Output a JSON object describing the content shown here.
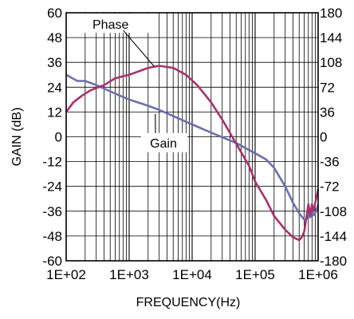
{
  "chart_data": {
    "type": "line",
    "title": "",
    "xlabel": "FREQUENCY(Hz)",
    "ylabel": "GAIN (dB)",
    "x_scale": "log",
    "xlim": [
      100,
      1000000
    ],
    "ylim": [
      -60,
      60
    ],
    "y2lim": [
      -180,
      180
    ],
    "x_ticks": [
      {
        "value": 100,
        "label": "1E+02"
      },
      {
        "value": 1000,
        "label": "1E+03"
      },
      {
        "value": 10000,
        "label": "1E+04"
      },
      {
        "value": 100000,
        "label": "1E+05"
      },
      {
        "value": 1000000,
        "label": "1E+06"
      }
    ],
    "y_ticks": [
      {
        "value": 60,
        "label": "60"
      },
      {
        "value": 48,
        "label": "48"
      },
      {
        "value": 36,
        "label": "36"
      },
      {
        "value": 24,
        "label": "24"
      },
      {
        "value": 12,
        "label": "12"
      },
      {
        "value": 0,
        "label": "0"
      },
      {
        "value": -12,
        "label": "-12"
      },
      {
        "value": -24,
        "label": "-24"
      },
      {
        "value": -36,
        "label": "-36"
      },
      {
        "value": -48,
        "label": "-48"
      },
      {
        "value": -60,
        "label": "-60"
      }
    ],
    "y2_ticks": [
      {
        "value": 180,
        "label": "180"
      },
      {
        "value": 144,
        "label": "144"
      },
      {
        "value": 108,
        "label": "108"
      },
      {
        "value": 72,
        "label": "72"
      },
      {
        "value": 36,
        "label": "36"
      },
      {
        "value": 0,
        "label": "0"
      },
      {
        "value": -36,
        "label": "-36"
      },
      {
        "value": -72,
        "label": "-72"
      },
      {
        "value": -108,
        "label": "-108"
      },
      {
        "value": -144,
        "label": "-144"
      },
      {
        "value": -180,
        "label": "-180"
      }
    ],
    "grid": true,
    "series": [
      {
        "name": "Gain",
        "axis": "left",
        "color": "#6a6fad",
        "points": [
          [
            100,
            30
          ],
          [
            150,
            27
          ],
          [
            200,
            27
          ],
          [
            300,
            25
          ],
          [
            500,
            22
          ],
          [
            700,
            20
          ],
          [
            1000,
            18
          ],
          [
            2000,
            15
          ],
          [
            3000,
            13
          ],
          [
            5000,
            10
          ],
          [
            10000,
            6
          ],
          [
            20000,
            2
          ],
          [
            50000,
            -3
          ],
          [
            100000,
            -8
          ],
          [
            150000,
            -11
          ],
          [
            200000,
            -15
          ],
          [
            300000,
            -24
          ],
          [
            400000,
            -32
          ],
          [
            500000,
            -37
          ],
          [
            600000,
            -40
          ],
          [
            650000,
            -40
          ],
          [
            700000,
            -37
          ],
          [
            750000,
            -39
          ],
          [
            800000,
            -36
          ],
          [
            850000,
            -38
          ],
          [
            900000,
            -37
          ],
          [
            1000000,
            -33
          ]
        ]
      },
      {
        "name": "Phase",
        "axis": "right",
        "color": "#a8306d",
        "points": [
          [
            100,
            36
          ],
          [
            130,
            50
          ],
          [
            180,
            60
          ],
          [
            250,
            68
          ],
          [
            400,
            75
          ],
          [
            600,
            85
          ],
          [
            1000,
            90
          ],
          [
            2000,
            100
          ],
          [
            3000,
            103
          ],
          [
            5000,
            100
          ],
          [
            8000,
            90
          ],
          [
            12000,
            75
          ],
          [
            20000,
            50
          ],
          [
            30000,
            25
          ],
          [
            50000,
            -10
          ],
          [
            80000,
            -42
          ],
          [
            100000,
            -65
          ],
          [
            150000,
            -92
          ],
          [
            200000,
            -115
          ],
          [
            300000,
            -135
          ],
          [
            400000,
            -146
          ],
          [
            500000,
            -150
          ],
          [
            550000,
            -146
          ],
          [
            600000,
            -138
          ],
          [
            650000,
            -118
          ],
          [
            700000,
            -98
          ],
          [
            750000,
            -114
          ],
          [
            800000,
            -98
          ],
          [
            850000,
            -108
          ],
          [
            900000,
            -96
          ],
          [
            1000000,
            -76
          ]
        ]
      }
    ],
    "annotations": [
      {
        "text": "Phase",
        "series": "Phase"
      },
      {
        "text": "Gain",
        "series": "Gain"
      }
    ]
  }
}
